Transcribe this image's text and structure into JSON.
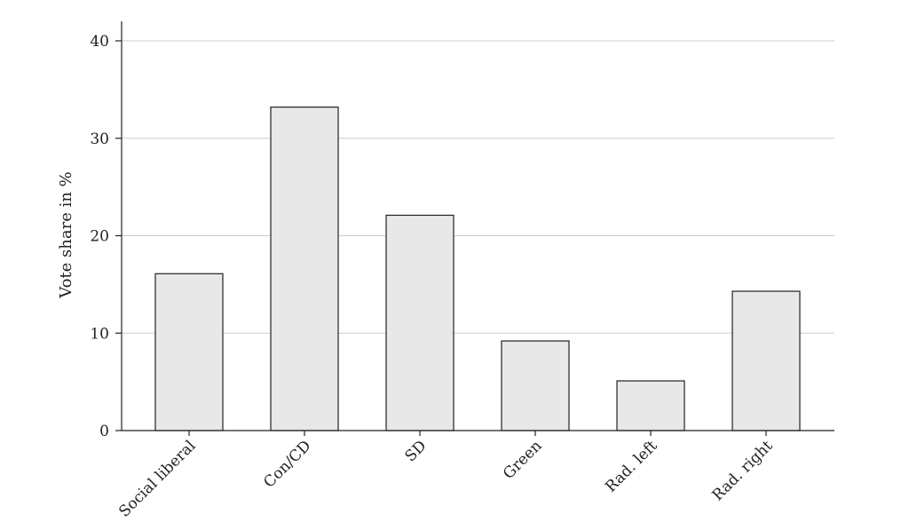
{
  "chart_data": {
    "type": "bar",
    "title": "",
    "xlabel": "",
    "ylabel": "Vote share in %",
    "categories": [
      "Social liberal",
      "Con/CD",
      "SD",
      "Green",
      "Rad. left",
      "Rad. right"
    ],
    "values": [
      16.1,
      33.2,
      22.1,
      9.2,
      5.1,
      14.3
    ],
    "ylim": [
      0,
      40
    ],
    "yticks": [
      0,
      10,
      20,
      30,
      40
    ],
    "grid": "horizontal",
    "bar_color": "#e8e8e8",
    "bar_edge_color": "#222222"
  }
}
